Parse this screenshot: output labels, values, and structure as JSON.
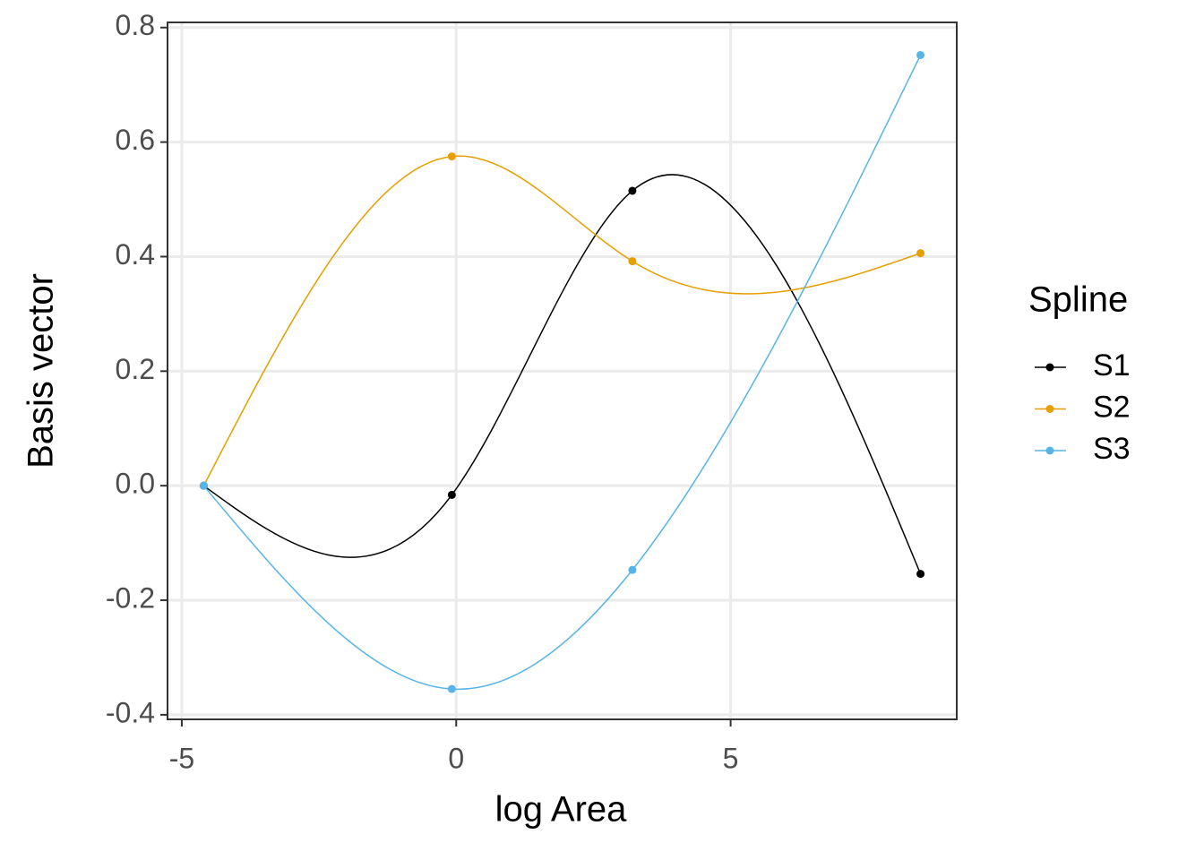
{
  "chart_data": {
    "type": "line",
    "x_label": "log Area",
    "y_label": "Basis vector",
    "legend_title": "Spline",
    "legend_position": "right",
    "grid": true,
    "smooth": true,
    "x": [
      -4.6,
      -0.08,
      3.21,
      8.46
    ],
    "series": [
      {
        "name": "S1",
        "color": "#000000",
        "values": [
          0,
          -0.016,
          0.515,
          -0.154
        ]
      },
      {
        "name": "S2",
        "color": "#E69F00",
        "values": [
          0,
          0.575,
          0.392,
          0.406
        ]
      },
      {
        "name": "S3",
        "color": "#56B4E9",
        "values": [
          0,
          -0.355,
          -0.147,
          0.752
        ]
      }
    ],
    "xlim": [
      -5.26,
      9.12
    ],
    "ylim": [
      -0.408,
      0.809
    ],
    "xticks": [
      -5,
      0,
      5
    ],
    "yticks": [
      {
        "value": -0.4,
        "label": "-0.4"
      },
      {
        "value": -0.2,
        "label": "-0.2"
      },
      {
        "value": 0,
        "label": "0.0"
      },
      {
        "value": 0.2,
        "label": "0.2"
      },
      {
        "value": 0.4,
        "label": "0.4"
      },
      {
        "value": 0.6,
        "label": "0.6"
      },
      {
        "value": 0.8,
        "label": "0.8"
      }
    ]
  }
}
